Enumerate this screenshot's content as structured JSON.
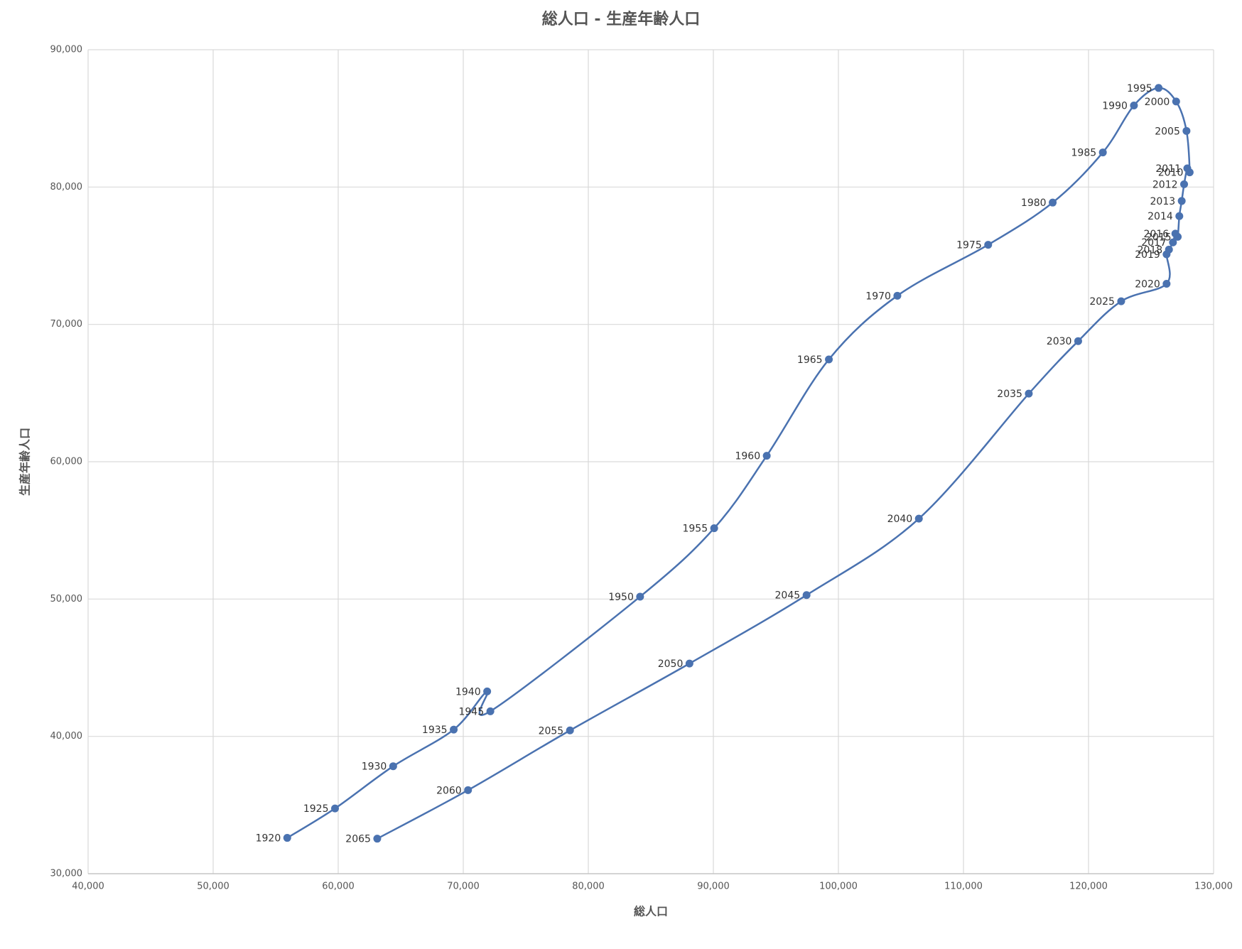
{
  "chart_data": {
    "type": "scatter",
    "title": "総人口 - 生産年齢人口",
    "x_label": "総人口",
    "y_label": "生産年齢人口",
    "color": "#4a72b0",
    "smooth": true,
    "grid": true,
    "point_labels": [
      "1920",
      "1925",
      "1930",
      "1935",
      "1940",
      "1945",
      "1950",
      "1955",
      "1960",
      "1965",
      "1970",
      "1975",
      "1980",
      "1985",
      "1990",
      "1995",
      "2000",
      "2005",
      "2010",
      "2011",
      "2012",
      "2013",
      "2014",
      "2015",
      "2016",
      "2017",
      "2018",
      "2019",
      "2020",
      "2025",
      "2030",
      "2035",
      "2040",
      "2045",
      "2050",
      "2055",
      "2060",
      "2065"
    ],
    "x": [
      55924,
      59745,
      64395,
      69236,
      71911,
      72166,
      84140,
      90064,
      94268,
      99236,
      104713,
      111975,
      117134,
      121146,
      123631,
      125605,
      127006,
      127834,
      128089,
      127898,
      127643,
      127452,
      127261,
      127134,
      126943,
      126752,
      126433,
      126242,
      126242,
      122611,
      119172,
      115223,
      106433,
      97452,
      88089,
      78535,
      70382,
      63121
    ],
    "values": [
      32609,
      34754,
      37826,
      40493,
      43275,
      41826,
      50174,
      55159,
      60435,
      67449,
      72087,
      75797,
      78870,
      82522,
      85942,
      87217,
      86232,
      84087,
      81072,
      81362,
      80203,
      78986,
      77884,
      76377,
      76609,
      75971,
      75449,
      75101,
      72957,
      71681,
      68783,
      64957,
      55855,
      50290,
      45304,
      40435,
      36087,
      32551
    ],
    "xlim": [
      40000,
      130000
    ],
    "xticks": [
      {
        "value": 40000,
        "label": "40,000"
      },
      {
        "value": 50000,
        "label": "50,000"
      },
      {
        "value": 60000,
        "label": "60,000"
      },
      {
        "value": 70000,
        "label": "70,000"
      },
      {
        "value": 80000,
        "label": "80,000"
      },
      {
        "value": 90000,
        "label": "90,000"
      },
      {
        "value": 100000,
        "label": "100,000"
      },
      {
        "value": 110000,
        "label": "110,000"
      },
      {
        "value": 120000,
        "label": "120,000"
      },
      {
        "value": 130000,
        "label": "130,000"
      }
    ],
    "ylim": [
      30000,
      90000
    ],
    "yticks": [
      {
        "value": 30000,
        "label": "30,000"
      },
      {
        "value": 40000,
        "label": "40,000"
      },
      {
        "value": 50000,
        "label": "50,000"
      },
      {
        "value": 60000,
        "label": "60,000"
      },
      {
        "value": 70000,
        "label": "70,000"
      },
      {
        "value": 80000,
        "label": "80,000"
      },
      {
        "value": 90000,
        "label": "90,000"
      }
    ]
  }
}
